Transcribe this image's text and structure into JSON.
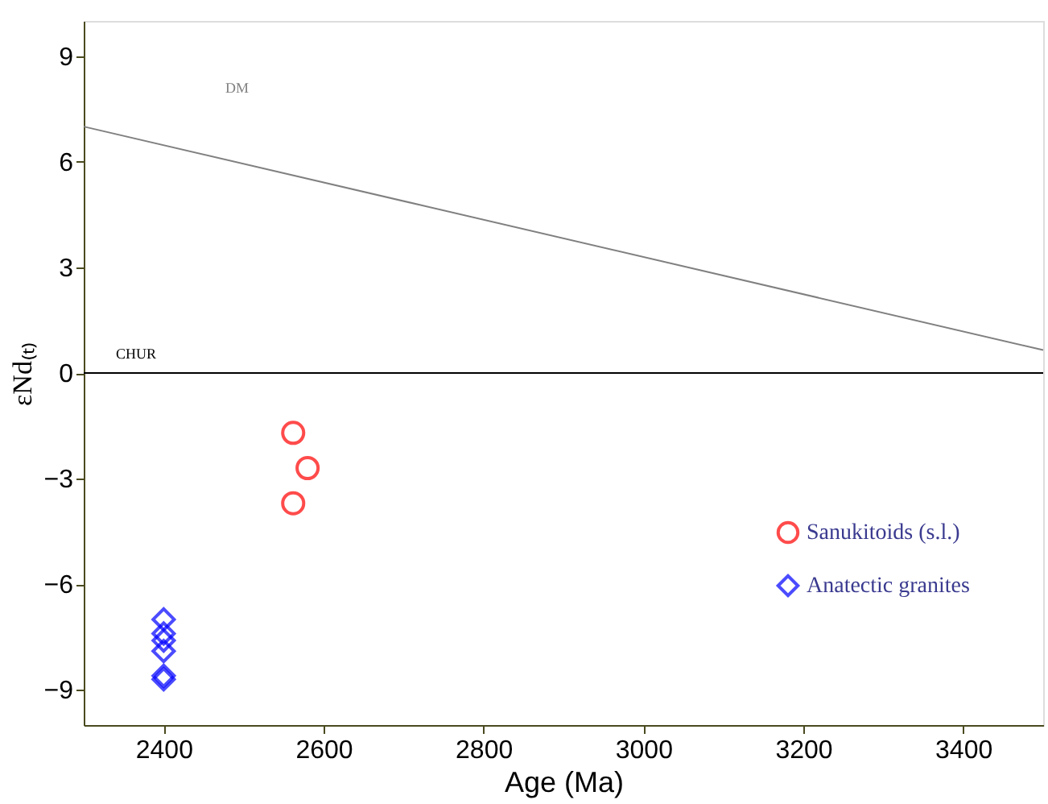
{
  "chart_data": {
    "type": "scatter",
    "xlabel": "Age (Ma)",
    "ylabel": "εNd₍ₜ₎",
    "xlim": [
      2300,
      3500
    ],
    "xticks": [
      2400,
      2600,
      2800,
      3000,
      3200,
      3400
    ],
    "ylim": [
      -10,
      10
    ],
    "yticks": [
      -9,
      -6,
      -3,
      0,
      3,
      6,
      9
    ],
    "grid": false,
    "legend": "right",
    "series": [
      {
        "name": "Sanukitoids (s.l.)",
        "color": "#ff0000",
        "marker": "circle",
        "x": [
          2562,
          2580,
          2562
        ],
        "values": [
          -1.7,
          -2.7,
          -3.7
        ]
      },
      {
        "name": "Anatectic granites",
        "color": "#0000ff",
        "marker": "diamond",
        "x": [
          2400,
          2400,
          2400,
          2400,
          2400,
          2400
        ],
        "values": [
          -7.0,
          -7.4,
          -7.6,
          -7.9,
          -8.6,
          -8.7
        ]
      },
      {
        "type": "line",
        "name": "DM",
        "color": "#808080",
        "x": [
          2300,
          3500
        ],
        "values": [
          7.0,
          0.65
        ]
      }
    ],
    "ref_lines": [
      {
        "axis": "y",
        "value": 0,
        "label": "CHUR",
        "color": "#000000"
      }
    ]
  }
}
